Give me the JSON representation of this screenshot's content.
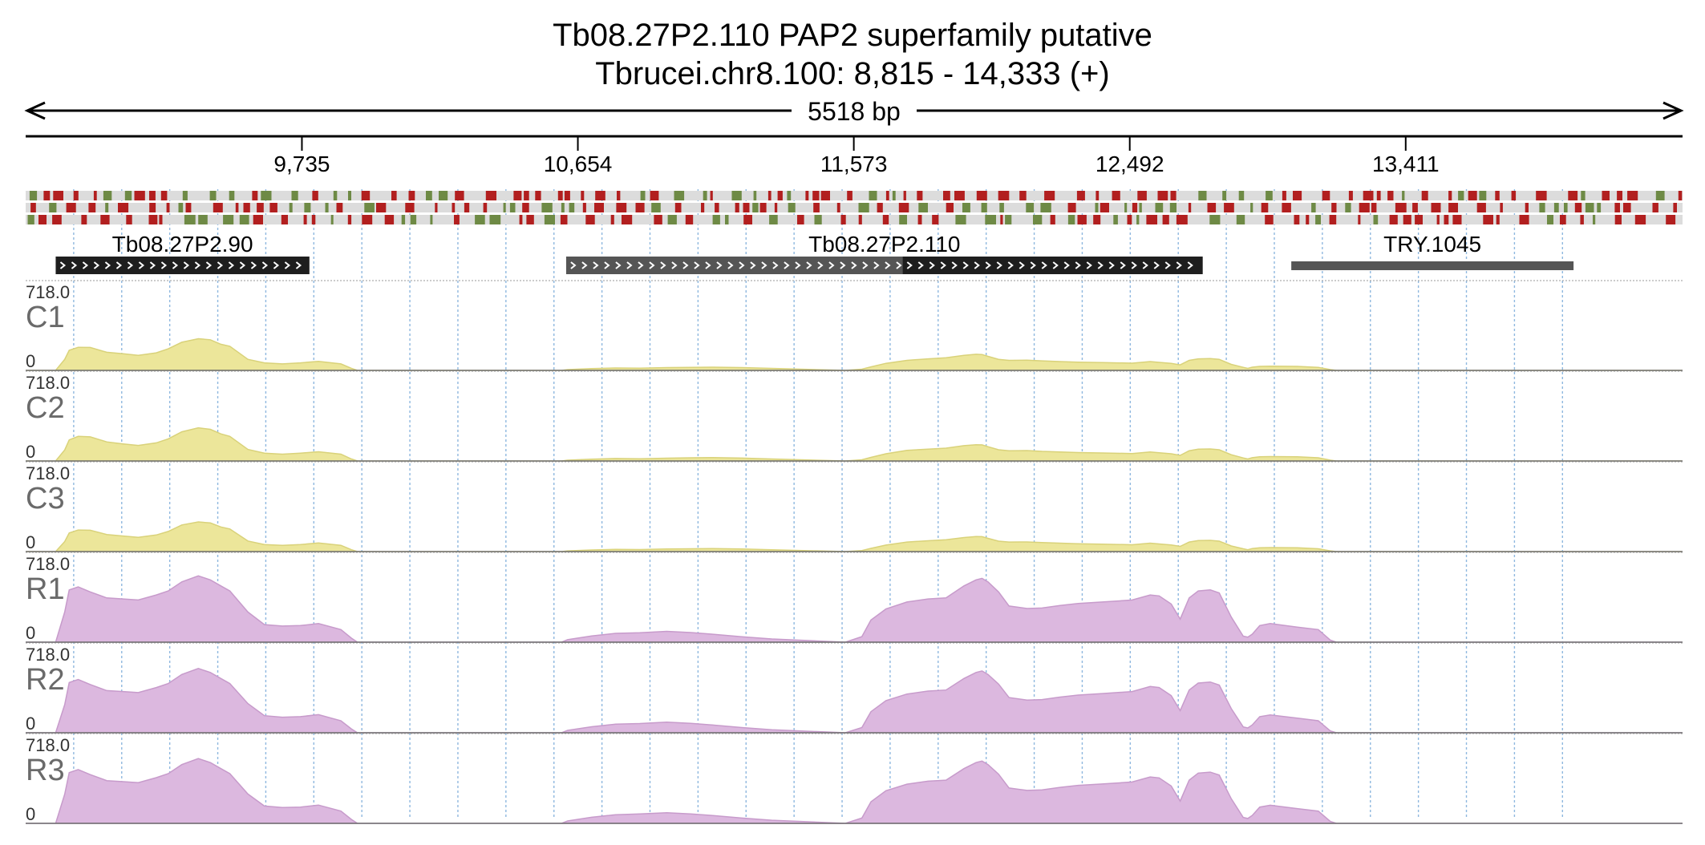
{
  "chart_data": {
    "type": "area",
    "title": "Tb08.27P2.110  PAP2 superfamily  putative",
    "subtitle": "Tbrucei.chr8.100: 8,815 - 14,333 (+)",
    "span_label": "5518 bp",
    "xlim": [
      8815,
      14333
    ],
    "ticks": [
      {
        "value": 9735,
        "label": "9,735"
      },
      {
        "value": 10654,
        "label": "10,654"
      },
      {
        "value": 11573,
        "label": "11,573"
      },
      {
        "value": 12492,
        "label": "12,492"
      },
      {
        "value": 13411,
        "label": "13,411"
      }
    ],
    "genes": [
      {
        "name": "Tb08.27P2.90",
        "start": 8915,
        "end": 9760,
        "kind": "cds",
        "strand": "+"
      },
      {
        "name": "Tb08.27P2.110",
        "start": 10615,
        "end": 11735,
        "kind": "utr",
        "strand": "+"
      },
      {
        "name": "",
        "start": 11735,
        "end": 12735,
        "kind": "cds",
        "strand": "+"
      },
      {
        "name": "TRY.1045",
        "start": 13030,
        "end": 13970,
        "kind": "other",
        "strand": ""
      }
    ],
    "ylim": [
      0,
      718.0
    ],
    "ymax_label": "718.0",
    "ymin_label": "0",
    "profile_x": [
      8815,
      8915,
      8945,
      8960,
      8990,
      9030,
      9085,
      9140,
      9190,
      9250,
      9290,
      9335,
      9390,
      9430,
      9465,
      9495,
      9555,
      9610,
      9670,
      9730,
      9790,
      9865,
      9900,
      9920,
      10200,
      10600,
      10620,
      10700,
      10780,
      10860,
      10950,
      11030,
      11100,
      11200,
      11300,
      11545,
      11600,
      11630,
      11680,
      11750,
      11820,
      11880,
      11940,
      11980,
      12000,
      12020,
      12055,
      12090,
      12150,
      12200,
      12260,
      12320,
      12400,
      12500,
      12560,
      12590,
      12630,
      12660,
      12690,
      12720,
      12760,
      12790,
      12830,
      12870,
      12885,
      12900,
      12925,
      12960,
      13050,
      13120,
      13160,
      13180,
      14333
    ],
    "series": [
      {
        "name": "C1",
        "color": "#ece69a",
        "stroke": "#d9d27a",
        "values": [
          0,
          0,
          110,
          200,
          230,
          228,
          180,
          165,
          150,
          175,
          215,
          280,
          315,
          305,
          260,
          240,
          110,
          75,
          65,
          75,
          90,
          65,
          20,
          0,
          0,
          0,
          8,
          18,
          24,
          22,
          28,
          30,
          32,
          28,
          20,
          0,
          12,
          35,
          70,
          100,
          115,
          125,
          150,
          160,
          158,
          140,
          110,
          100,
          102,
          95,
          88,
          82,
          78,
          72,
          88,
          80,
          70,
          55,
          100,
          115,
          118,
          110,
          60,
          30,
          20,
          32,
          40,
          42,
          40,
          30,
          8,
          0,
          0
        ]
      },
      {
        "name": "C2",
        "color": "#ece69a",
        "stroke": "#d9d27a",
        "values": [
          0,
          0,
          110,
          210,
          245,
          240,
          190,
          170,
          155,
          180,
          220,
          290,
          330,
          315,
          270,
          245,
          115,
          78,
          68,
          78,
          92,
          68,
          20,
          0,
          0,
          0,
          8,
          18,
          25,
          22,
          28,
          32,
          34,
          29,
          20,
          0,
          12,
          36,
          72,
          105,
          118,
          128,
          152,
          162,
          160,
          142,
          112,
          102,
          104,
          96,
          90,
          84,
          80,
          74,
          90,
          82,
          72,
          56,
          102,
          118,
          120,
          112,
          62,
          30,
          20,
          33,
          42,
          44,
          42,
          32,
          8,
          0,
          0
        ]
      },
      {
        "name": "C3",
        "color": "#ece69a",
        "stroke": "#d9d27a",
        "values": [
          0,
          0,
          100,
          185,
          215,
          212,
          170,
          155,
          142,
          165,
          200,
          265,
          295,
          285,
          245,
          225,
          105,
          70,
          62,
          70,
          85,
          62,
          18,
          0,
          0,
          0,
          7,
          16,
          22,
          20,
          26,
          28,
          30,
          26,
          18,
          0,
          10,
          32,
          65,
          95,
          108,
          118,
          140,
          150,
          148,
          132,
          104,
          95,
          96,
          90,
          84,
          78,
          74,
          68,
          84,
          76,
          66,
          52,
          95,
          110,
          112,
          104,
          56,
          28,
          18,
          30,
          38,
          40,
          38,
          28,
          7,
          0,
          0
        ]
      },
      {
        "name": "R1",
        "color": "#dcb8df",
        "stroke": "#c79bcb",
        "values": [
          0,
          0,
          300,
          520,
          550,
          500,
          440,
          430,
          420,
          470,
          510,
          600,
          660,
          620,
          560,
          510,
          300,
          175,
          160,
          165,
          185,
          125,
          40,
          0,
          0,
          0,
          25,
          62,
          88,
          94,
          108,
          96,
          80,
          54,
          32,
          0,
          55,
          220,
          330,
          400,
          430,
          440,
          560,
          620,
          635,
          600,
          500,
          360,
          335,
          340,
          365,
          385,
          400,
          420,
          470,
          460,
          380,
          230,
          440,
          510,
          520,
          490,
          250,
          60,
          50,
          80,
          165,
          185,
          150,
          125,
          20,
          0,
          0
        ]
      },
      {
        "name": "R2",
        "color": "#dcb8df",
        "stroke": "#c79bcb",
        "values": [
          0,
          0,
          280,
          500,
          530,
          480,
          420,
          410,
          400,
          450,
          490,
          580,
          640,
          600,
          540,
          490,
          290,
          170,
          155,
          160,
          180,
          120,
          38,
          0,
          0,
          0,
          24,
          60,
          85,
          92,
          105,
          93,
          78,
          52,
          30,
          0,
          52,
          210,
          320,
          385,
          415,
          425,
          540,
          600,
          615,
          580,
          485,
          350,
          325,
          330,
          355,
          375,
          390,
          410,
          460,
          450,
          370,
          220,
          425,
          495,
          505,
          475,
          240,
          58,
          48,
          78,
          160,
          178,
          145,
          120,
          18,
          0,
          0
        ]
      },
      {
        "name": "R3",
        "color": "#dcb8df",
        "stroke": "#c79bcb",
        "values": [
          0,
          0,
          290,
          505,
          535,
          485,
          425,
          415,
          405,
          455,
          495,
          585,
          645,
          605,
          545,
          495,
          292,
          172,
          157,
          162,
          182,
          122,
          39,
          0,
          0,
          0,
          24,
          61,
          86,
          93,
          106,
          94,
          79,
          53,
          31,
          0,
          53,
          215,
          325,
          390,
          420,
          430,
          545,
          605,
          620,
          585,
          490,
          352,
          328,
          333,
          358,
          378,
          392,
          412,
          462,
          452,
          372,
          222,
          430,
          500,
          510,
          480,
          245,
          59,
          49,
          79,
          162,
          180,
          147,
          122,
          19,
          0,
          0
        ]
      }
    ],
    "grid": true,
    "legend": "none"
  },
  "colors": {
    "codon_red": "#b21f1f",
    "codon_green": "#6e8a45",
    "codon_track": "#dcdcdc",
    "gene_dark": "#1e1e1e",
    "gene_utr": "#555555",
    "grid_blue": "#8fb8df"
  }
}
